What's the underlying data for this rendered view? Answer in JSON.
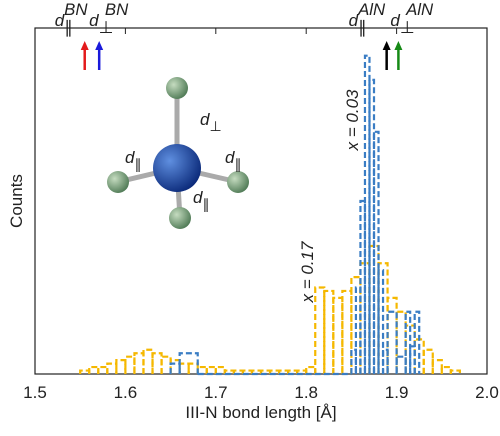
{
  "chart_data": {
    "type": "histogram",
    "xlabel": "III-N bond length [Å]",
    "ylabel": "Counts",
    "xlim": [
      1.5,
      2.0
    ],
    "ylim": [
      0,
      100
    ],
    "xticks": [
      1.5,
      1.6,
      1.7,
      1.8,
      1.9,
      {
        "value": 2.0,
        "label": "2.0"
      }
    ],
    "series": [
      {
        "name": "x = 0.17",
        "color": "#f5b800",
        "bins": [
          1.55,
          1.56,
          1.57,
          1.58,
          1.59,
          1.6,
          1.61,
          1.62,
          1.63,
          1.64,
          1.65,
          1.66,
          1.67,
          1.68,
          1.69,
          1.7,
          1.71,
          1.72,
          1.73,
          1.74,
          1.75,
          1.76,
          1.77,
          1.78,
          1.79,
          1.8,
          1.81,
          1.82,
          1.83,
          1.84,
          1.85,
          1.86,
          1.87,
          1.88,
          1.89,
          1.9,
          1.91,
          1.92,
          1.93,
          1.94,
          1.95,
          1.96,
          1.97
        ],
        "values": [
          1,
          2,
          2,
          3,
          4,
          5,
          6,
          7,
          6,
          5,
          4,
          3,
          3,
          2,
          2,
          2,
          1,
          1,
          1,
          1,
          1,
          1,
          1,
          1,
          1,
          2,
          25,
          24,
          22,
          24,
          28,
          32,
          37,
          32,
          22,
          18,
          14,
          10,
          7,
          4,
          2,
          1
        ]
      },
      {
        "name": "x = 0.03",
        "color": "#3a7dc4",
        "bins": [
          1.65,
          1.66,
          1.68,
          1.85,
          1.855,
          1.86,
          1.865,
          1.87,
          1.875,
          1.88,
          1.885,
          1.89,
          1.9,
          1.91,
          1.915,
          1.92,
          1.925
        ],
        "values": [
          3,
          6,
          0,
          7,
          25,
          50,
          92,
          85,
          70,
          30,
          7,
          18,
          5,
          18,
          8,
          18
        ]
      }
    ],
    "annotations": [
      {
        "symbol": "d",
        "sub": "∥",
        "sup": "BN",
        "x": 1.555,
        "color": "#e31a1c"
      },
      {
        "symbol": "d",
        "sub": "⊥",
        "sup": "BN",
        "x": 1.571,
        "color": "#1a1adb"
      },
      {
        "symbol": "d",
        "sub": "∥",
        "sup": "AlN",
        "x": 1.889,
        "color": "#000000"
      },
      {
        "symbol": "d",
        "sub": "⊥",
        "sup": "AlN",
        "x": 1.902,
        "color": "#168a16"
      }
    ],
    "inset_labels": [
      {
        "symbol": "d",
        "sub": "⊥"
      },
      {
        "symbol": "d",
        "sub": "∥"
      },
      {
        "symbol": "d",
        "sub": "∥"
      },
      {
        "symbol": "d",
        "sub": "∥"
      }
    ]
  }
}
